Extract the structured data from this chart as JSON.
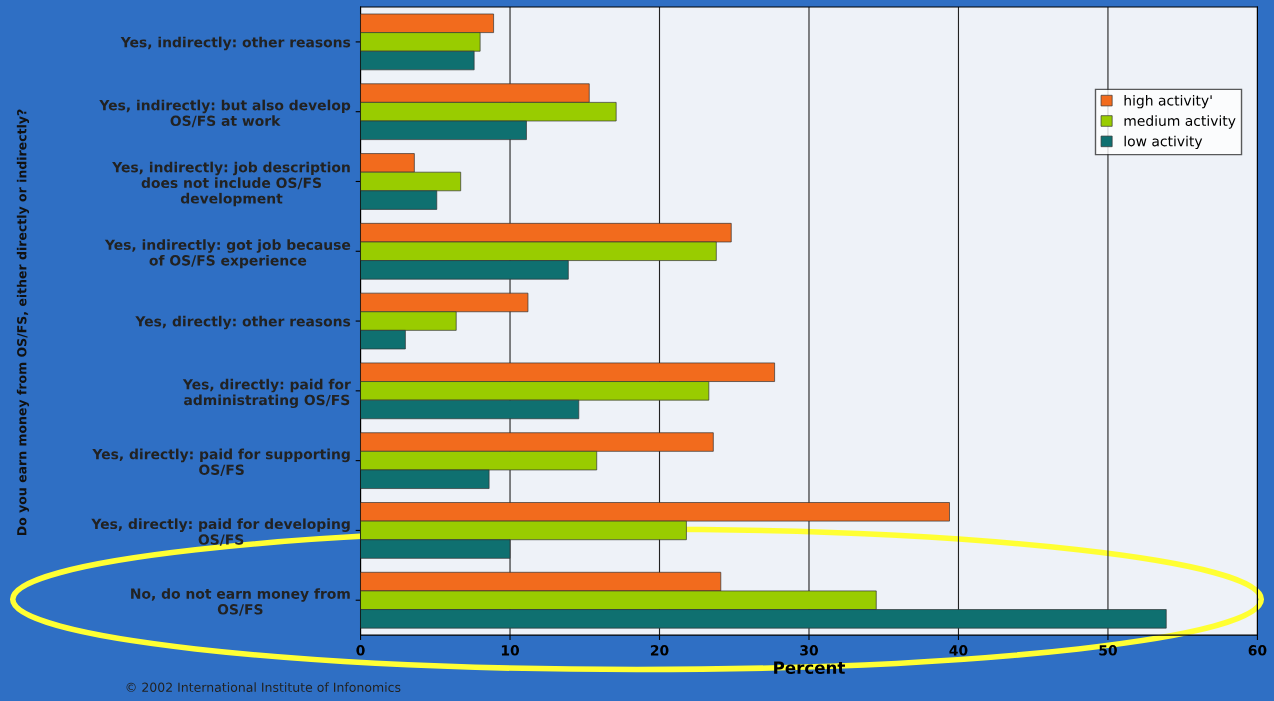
{
  "chart_data": {
    "type": "bar",
    "orientation": "horizontal",
    "xlabel": "Percent",
    "ylabel": "Do you earn money from OS/FS, either directly or indirectly?",
    "categories": [
      "Yes, indirectly: other reasons",
      "Yes, indirectly: but also develop\nOS/FS at work",
      "Yes, indirectly: job description\ndoes not include OS/FS\ndevelopment",
      "Yes, indirectly: got job because\nof OS/FS experience",
      "Yes, directly: other reasons",
      "Yes, directly: paid for\nadministrating OS/FS",
      "Yes, directly: paid for supporting\nOS/FS",
      "Yes, directly: paid for developing\nOS/FS",
      "No, do not earn money from\nOS/FS"
    ],
    "series": [
      {
        "name": "high activity'",
        "color": "#f26b1d",
        "values": [
          8.9,
          15.3,
          3.6,
          24.8,
          11.2,
          27.7,
          23.6,
          39.4,
          24.1
        ]
      },
      {
        "name": "medium activity",
        "color": "#99cc00",
        "values": [
          8.0,
          17.1,
          6.7,
          23.8,
          6.4,
          23.3,
          15.8,
          21.8,
          34.5
        ]
      },
      {
        "name": "low activity",
        "color": "#0f7070",
        "values": [
          7.6,
          11.1,
          5.1,
          13.9,
          3.0,
          14.6,
          8.6,
          10.0,
          53.9
        ]
      }
    ],
    "xlim": [
      0,
      60
    ],
    "xticks": [
      0,
      10,
      20,
      30,
      40,
      50,
      60
    ],
    "grid": "x",
    "legend": "top right",
    "annotations": [
      "© 2002 International Institute of Infonomics"
    ]
  }
}
